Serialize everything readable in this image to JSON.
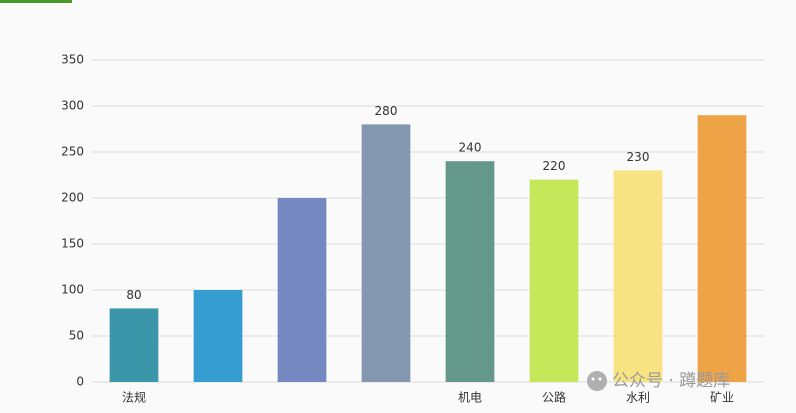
{
  "chart_data": {
    "type": "bar",
    "categories": [
      "法规",
      null,
      null,
      null,
      "机电",
      "公路",
      "水利",
      "矿业"
    ],
    "values": [
      80,
      100,
      200,
      280,
      240,
      220,
      230,
      290
    ],
    "value_labels": [
      "80",
      null,
      null,
      "280",
      "240",
      "220",
      "230",
      null
    ],
    "colors": [
      "#3a96a8",
      "#359dcf",
      "#7589c0",
      "#8398b0",
      "#64998a",
      "#c4e85a",
      "#f7e382",
      "#eea346"
    ],
    "ylim": [
      0,
      350
    ],
    "yticks": [
      0,
      50,
      100,
      150,
      200,
      250,
      300,
      350
    ],
    "grid": true,
    "watermark": "公众号 · 蹲题库"
  }
}
